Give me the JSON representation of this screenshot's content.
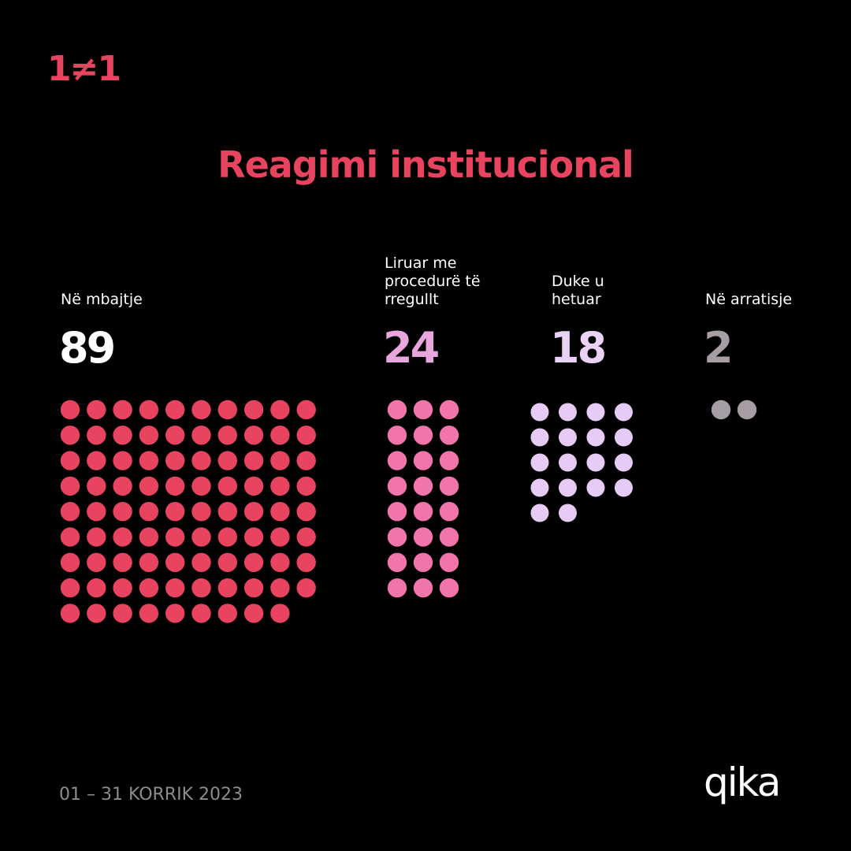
{
  "header": {
    "logo": "1≠1"
  },
  "chart_data": {
    "type": "dots",
    "title": "Reagimi institucional",
    "categories": [
      "Në mbajtje",
      "Liruar me procedurë të rregullt",
      "Duke u hetuar",
      "Në arratisje"
    ],
    "values": [
      89,
      24,
      18,
      2
    ],
    "colors": [
      "#e8435f",
      "#f174aa",
      "#e6cbf4",
      "#a59ea4"
    ]
  },
  "footer": {
    "date": "01 – 31 KORRIK 2023",
    "brand": "qika"
  }
}
